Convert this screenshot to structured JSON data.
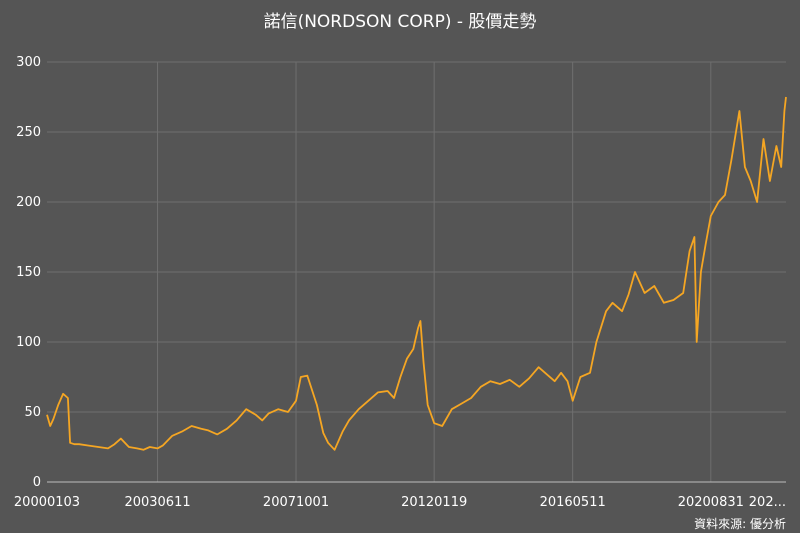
{
  "chart_data": {
    "type": "line",
    "title": "諾信(NORDSON CORP) - 股價走勢",
    "source": "資料來源: 優分析",
    "ylim": [
      0,
      300
    ],
    "y_ticks": [
      0,
      50,
      100,
      150,
      200,
      250,
      300
    ],
    "x_range": [
      2000.0,
      2023.0
    ],
    "x_ticks": [
      {
        "label": "20000103",
        "x": 2000.0
      },
      {
        "label": "20030611",
        "x": 2003.44
      },
      {
        "label": "20071001",
        "x": 2007.75
      },
      {
        "label": "20120119",
        "x": 2012.05
      },
      {
        "label": "20160511",
        "x": 2016.36
      },
      {
        "label": "20200831",
        "x": 2020.66
      },
      {
        "label": "202...",
        "x": 2023.0
      }
    ],
    "grid": true,
    "color": "#f5a623",
    "series": [
      {
        "x": [
          2000.0,
          2000.1,
          2000.2,
          2000.35,
          2000.5,
          2000.65,
          2000.72,
          2000.85,
          2001.0,
          2001.3,
          2001.6,
          2001.9,
          2002.1,
          2002.3,
          2002.55,
          2002.8,
          2003.0,
          2003.2,
          2003.44,
          2003.6,
          2003.9,
          2004.2,
          2004.5,
          2004.8,
          2005.0,
          2005.3,
          2005.6,
          2005.9,
          2006.2,
          2006.5,
          2006.7,
          2006.9,
          2007.2,
          2007.5,
          2007.75,
          2007.9,
          2008.1,
          2008.4,
          2008.6,
          2008.75,
          2008.95,
          2009.2,
          2009.4,
          2009.7,
          2010.0,
          2010.3,
          2010.6,
          2010.8,
          2011.0,
          2011.2,
          2011.4,
          2011.55,
          2011.62,
          2011.72,
          2011.85,
          2012.05,
          2012.3,
          2012.6,
          2012.9,
          2013.2,
          2013.5,
          2013.8,
          2014.1,
          2014.4,
          2014.7,
          2015.0,
          2015.3,
          2015.6,
          2015.8,
          2016.0,
          2016.2,
          2016.36,
          2016.6,
          2016.9,
          2017.1,
          2017.4,
          2017.6,
          2017.9,
          2018.1,
          2018.3,
          2018.6,
          2018.9,
          2019.2,
          2019.5,
          2019.8,
          2020.0,
          2020.15,
          2020.22,
          2020.35,
          2020.5,
          2020.66,
          2020.9,
          2021.1,
          2021.3,
          2021.55,
          2021.72,
          2021.9,
          2022.1,
          2022.3,
          2022.5,
          2022.7,
          2022.85,
          2022.95,
          2023.0
        ],
        "y": [
          48,
          40,
          45,
          55,
          63,
          60,
          28,
          27,
          27,
          26,
          25,
          24,
          27,
          31,
          25,
          24,
          23,
          25,
          24,
          26,
          33,
          36,
          40,
          38,
          37,
          34,
          38,
          44,
          52,
          48,
          44,
          49,
          52,
          50,
          58,
          75,
          76,
          55,
          35,
          28,
          23,
          36,
          44,
          52,
          58,
          64,
          65,
          60,
          75,
          88,
          95,
          110,
          115,
          85,
          55,
          42,
          40,
          52,
          56,
          60,
          68,
          72,
          70,
          73,
          68,
          74,
          82,
          76,
          72,
          78,
          72,
          58,
          75,
          78,
          100,
          122,
          128,
          122,
          134,
          150,
          135,
          140,
          128,
          130,
          135,
          165,
          175,
          100,
          150,
          170,
          190,
          200,
          205,
          230,
          265,
          225,
          215,
          200,
          245,
          215,
          240,
          225,
          265,
          275
        ]
      }
    ]
  }
}
